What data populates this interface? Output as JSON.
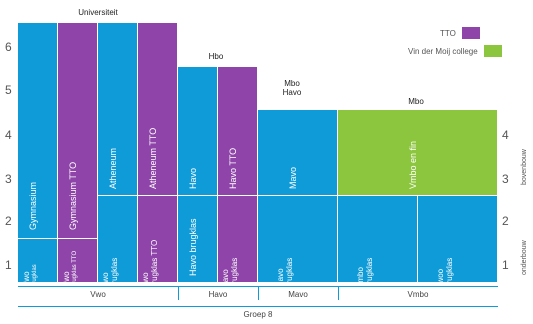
{
  "axis_left": [
    "6",
    "5",
    "4",
    "3",
    "2",
    "1"
  ],
  "axis_right": [
    "4",
    "3",
    "2",
    "1"
  ],
  "headers": {
    "universiteit": "Universiteit",
    "hbo": "Hbo",
    "mbo_havo_1": "Mbo",
    "mbo_havo_2": "Havo",
    "mbo": "Mbo"
  },
  "legend": {
    "tto": "TTO",
    "vdm": "Vin der Moij college",
    "colors": {
      "tto": "#8e44a8",
      "vdm": "#8cc63f",
      "base": "#0e9bd7"
    }
  },
  "blocks": {
    "gymnasium": "Gymnasium",
    "gymnasium_tto": "Gymnasium TTO",
    "atheneum": "Atheneum",
    "atheneum_tto": "Atheneum TTO",
    "havo": "Havo",
    "havo_tto": "Havo TTO",
    "mavo": "Mavo",
    "vmbo_vdm": "Vmbo en fin",
    "vwo_brugklas_1": "Vwo",
    "vwo_brugklas_2": "brugklas",
    "vwo_tto_1": "Vwo",
    "vwo_tto_2": "brugklas TTO",
    "vwo_havo_1": "Vwo",
    "vwo_havo_2": "brugklas",
    "vwo_havo_tto_1": "Vwo",
    "vwo_havo_tto_2": "brugklas TTO",
    "havo_brugklas": "Havo brugklas",
    "havo_brugklas_tto_1": "Havo",
    "havo_brugklas_tto_2": "brugklas",
    "mavo_brugklas_1": "Mavo",
    "mavo_brugklas_2": "brugklas",
    "vmbo_brugklas_1": "Vmbo",
    "vmbo_brugklas_2": "brugklas",
    "lwoo_brugklas_1": "Lwoo",
    "lwoo_brugklas_2": "brugklas"
  },
  "right_side": {
    "top": "bovenbouw",
    "bottom": "onderbouw"
  },
  "bottom_sections": [
    "Vwo",
    "Havo",
    "Mavo",
    "Vmbo"
  ],
  "group": "Groep 8"
}
